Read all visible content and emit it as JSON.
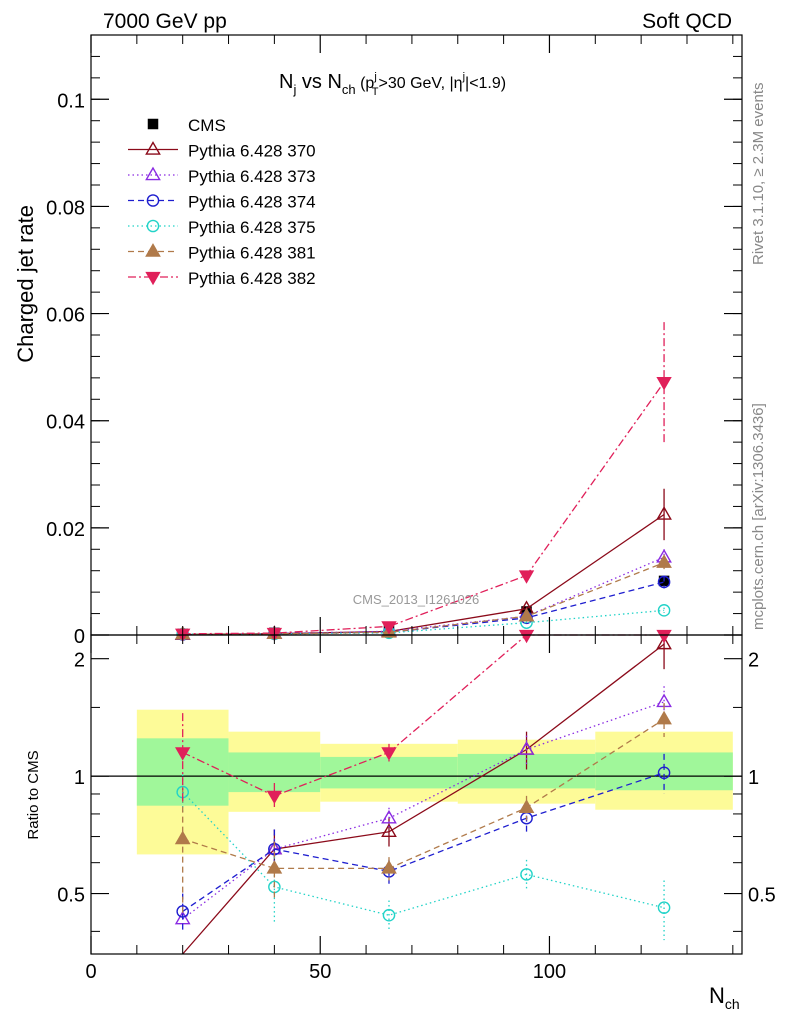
{
  "header": {
    "energy": "7000 GeV pp",
    "category": "Soft QCD"
  },
  "top_panel": {
    "title_base": "N",
    "title_sub": "j",
    "title_vs": " vs N",
    "title_sub2": "ch",
    "title_cuts": " (p",
    "title_cuts_sup": "j",
    "title_cuts_sub": "T",
    "title_cuts_rest": ">30 GeV, |η",
    "title_cuts_sup2": "j",
    "title_cuts_end": "|<1.9)",
    "watermark": "CMS_2013_I1261026"
  },
  "side_labels": {
    "rivet": "Rivet 3.1.10, ≥ 2.3M events",
    "mcplots": "mcplots.cern.ch [arXiv:1306.3436]"
  },
  "colors": {
    "cms": "#000000",
    "p370": "#8b0a1a",
    "p373": "#8a2be2",
    "p374": "#1e1ecf",
    "p375": "#22d3c8",
    "p381": "#b07a4a",
    "p382": "#e0205a",
    "band_green": "#a0f79a",
    "band_yellow": "#fdfb98"
  },
  "chart_data": [
    {
      "type": "line",
      "ylabel": "Charged jet rate",
      "xlabel": "N",
      "xlabel_sub": "ch",
      "xlim": [
        0,
        142
      ],
      "ylim": [
        0,
        0.112
      ],
      "yticks": [
        0,
        0.02,
        0.04,
        0.06,
        0.08,
        0.1
      ],
      "ytick_labels": [
        "0",
        "0.02",
        "0.04",
        "0.06",
        "0.08",
        "0.1"
      ],
      "x": [
        20,
        40,
        65,
        95,
        125
      ],
      "series": [
        {
          "name": "CMS",
          "key": "cms",
          "marker": "square",
          "dash": "",
          "values": [
            0.0002,
            0.0004,
            0.0009,
            0.0044,
            0.0101
          ],
          "errors": [
            5e-05,
            0.0001,
            0.0001,
            0.0003,
            0.0006
          ]
        },
        {
          "name": "Pythia 6.428 370",
          "key": "p370",
          "marker": "tri-up-open",
          "dash": "",
          "values": [
            5e-05,
            0.00025,
            0.00065,
            0.0049,
            0.0225
          ],
          "errors": [
            0,
            0,
            0,
            0.0004,
            0.0048
          ]
        },
        {
          "name": "Pythia 6.428 373",
          "key": "p373",
          "marker": "tri-up-open",
          "dash": "1.5 3",
          "values": [
            0.0001,
            0.00026,
            0.0007,
            0.0035,
            0.0145
          ],
          "errors": [
            0,
            0,
            0,
            0.0003,
            0.0015
          ]
        },
        {
          "name": "Pythia 6.428 374",
          "key": "p374",
          "marker": "circle-open",
          "dash": "6 4",
          "values": [
            0.0001,
            0.00026,
            0.0005,
            0.0032,
            0.0099
          ],
          "errors": [
            0,
            0,
            0,
            0.0003,
            0.0012
          ]
        },
        {
          "name": "Pythia 6.428 375",
          "key": "p375",
          "marker": "circle-open",
          "dash": "1.5 3",
          "values": [
            0.00018,
            0.00021,
            0.0004,
            0.0023,
            0.0046
          ],
          "errors": [
            0,
            0,
            0,
            0.0002,
            0.0005
          ]
        },
        {
          "name": "Pythia 6.428 381",
          "key": "p381",
          "marker": "tri-up-filled",
          "dash": "6 4",
          "values": [
            0.00014,
            0.00023,
            0.0005,
            0.0035,
            0.0135
          ],
          "errors": [
            0,
            0,
            0,
            0.0003,
            0.0012
          ]
        },
        {
          "name": "Pythia 6.428 382",
          "key": "p382",
          "marker": "tri-down-filled",
          "dash": "8 3 2 3",
          "values": [
            0.00023,
            0.00036,
            0.0016,
            0.0111,
            0.0472
          ],
          "errors": [
            0,
            0,
            0.0002,
            0.0007,
            0.0112
          ]
        }
      ]
    },
    {
      "type": "line",
      "ylabel": "Ratio to CMS",
      "xlabel": "N",
      "xlabel_sub": "ch",
      "xlim": [
        0,
        142
      ],
      "ylim": [
        0.35,
        2.3
      ],
      "scale": "log",
      "yticks": [
        0.5,
        1,
        2
      ],
      "ytick_labels": [
        "0.5",
        "1",
        "2"
      ],
      "xticks": [
        0,
        50,
        100
      ],
      "xtick_labels": [
        "0",
        "50",
        "100"
      ],
      "bins": [
        [
          10,
          30
        ],
        [
          30,
          50
        ],
        [
          50,
          80
        ],
        [
          80,
          110
        ],
        [
          110,
          140
        ]
      ],
      "band_green": [
        [
          0.84,
          1.25
        ],
        [
          0.91,
          1.15
        ],
        [
          0.93,
          1.12
        ],
        [
          0.93,
          1.14
        ],
        [
          0.92,
          1.15
        ]
      ],
      "band_yellow": [
        [
          0.63,
          1.48
        ],
        [
          0.81,
          1.3
        ],
        [
          0.86,
          1.21
        ],
        [
          0.85,
          1.24
        ],
        [
          0.82,
          1.3
        ]
      ],
      "x": [
        20,
        40,
        65,
        95,
        125
      ],
      "series": [
        {
          "name": "Pythia 6.428 370",
          "key": "p370",
          "marker": "tri-up-open",
          "dash": "",
          "values": [
            0.25,
            0.65,
            0.72,
            1.17,
            2.18
          ],
          "errors": [
            0,
            0.08,
            0.06,
            0.13,
            0.3
          ]
        },
        {
          "name": "Pythia 6.428 373",
          "key": "p373",
          "marker": "tri-up-open",
          "dash": "1.5 3",
          "values": [
            0.43,
            0.65,
            0.78,
            1.17,
            1.55
          ],
          "errors": [
            0,
            0.08,
            0.05,
            0.1,
            0.15
          ]
        },
        {
          "name": "Pythia 6.428 374",
          "key": "p374",
          "marker": "circle-open",
          "dash": "6 4",
          "values": [
            0.45,
            0.65,
            0.57,
            0.78,
            1.02
          ],
          "errors": [
            0.05,
            0.08,
            0.04,
            0.06,
            0.12
          ]
        },
        {
          "name": "Pythia 6.428 375",
          "key": "p375",
          "marker": "circle-open",
          "dash": "1.5 3",
          "values": [
            0.91,
            0.52,
            0.44,
            0.56,
            0.46
          ],
          "errors": [
            0.1,
            0.1,
            0.04,
            0.05,
            0.08
          ]
        },
        {
          "name": "Pythia 6.428 381",
          "key": "p381",
          "marker": "tri-up-filled",
          "dash": "6 4",
          "values": [
            0.69,
            0.58,
            0.58,
            0.83,
            1.4
          ],
          "errors": [
            0.25,
            0.1,
            0.04,
            0.06,
            0.14
          ]
        },
        {
          "name": "Pythia 6.428 382",
          "key": "p382",
          "marker": "tri-down-filled",
          "dash": "8 3 2 3",
          "values": [
            1.15,
            0.89,
            1.15,
            2.3,
            2.3
          ],
          "errors": [
            0.3,
            0.07,
            0.06,
            0,
            0
          ]
        }
      ]
    }
  ]
}
